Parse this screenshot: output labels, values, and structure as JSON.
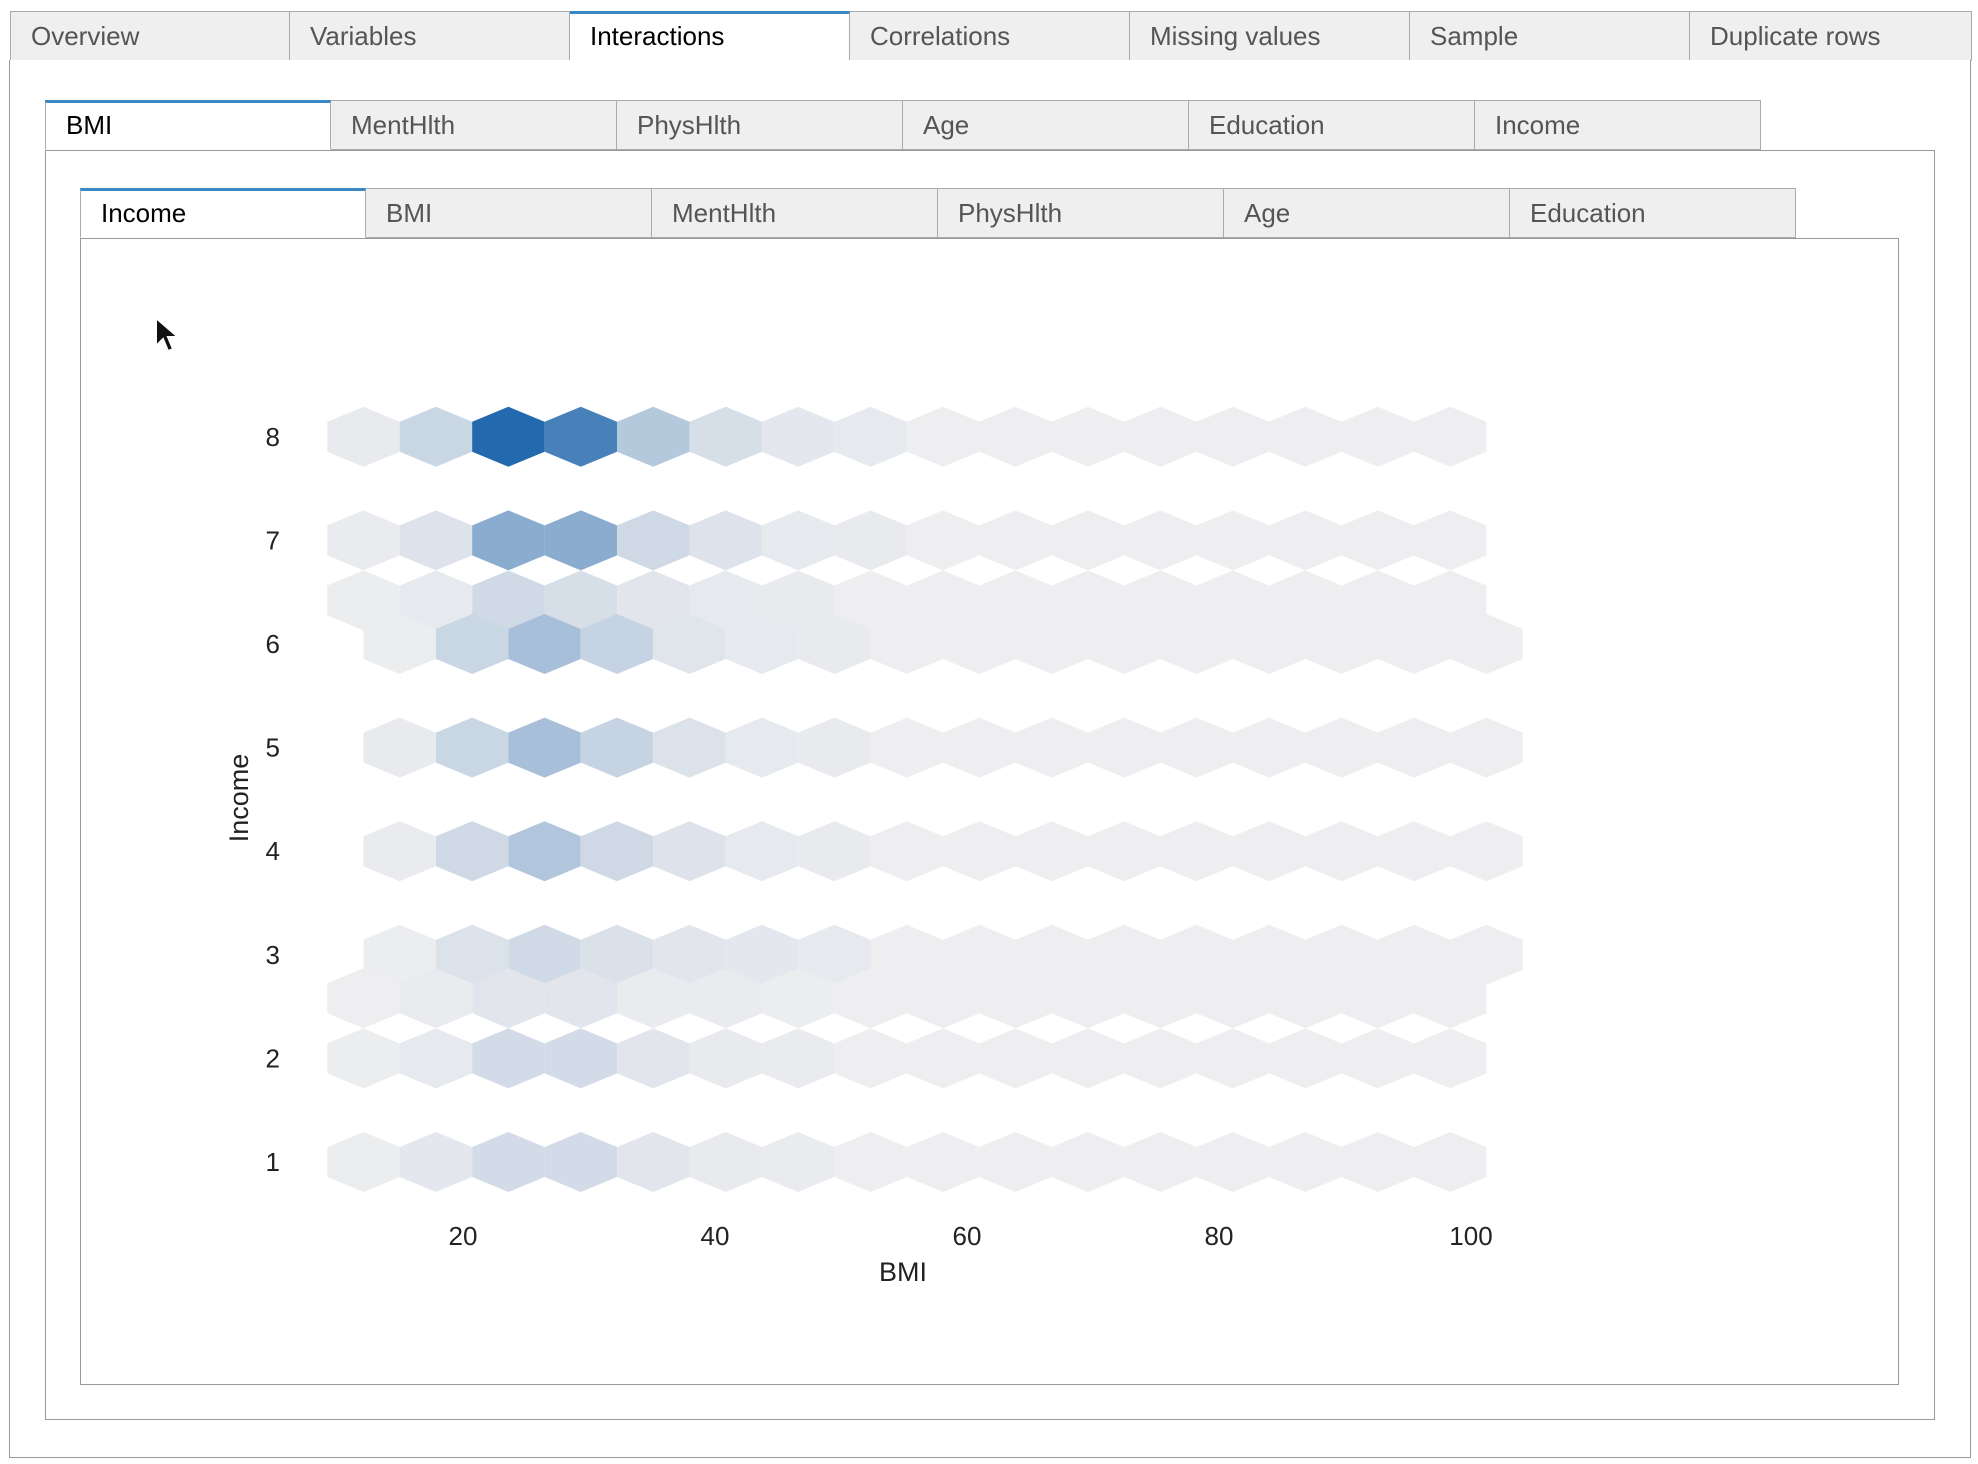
{
  "top_tabs": [
    {
      "label": "Overview",
      "active": false
    },
    {
      "label": "Variables",
      "active": false
    },
    {
      "label": "Interactions",
      "active": true
    },
    {
      "label": "Correlations",
      "active": false
    },
    {
      "label": "Missing values",
      "active": false
    },
    {
      "label": "Sample",
      "active": false
    },
    {
      "label": "Duplicate rows",
      "active": false
    }
  ],
  "x_tabs": [
    {
      "label": "BMI",
      "active": true
    },
    {
      "label": "MentHlth",
      "active": false
    },
    {
      "label": "PhysHlth",
      "active": false
    },
    {
      "label": "Age",
      "active": false
    },
    {
      "label": "Education",
      "active": false
    },
    {
      "label": "Income",
      "active": false
    }
  ],
  "y_tabs": [
    {
      "label": "Income",
      "active": true
    },
    {
      "label": "BMI",
      "active": false
    },
    {
      "label": "MentHlth",
      "active": false
    },
    {
      "label": "PhysHlth",
      "active": false
    },
    {
      "label": "Age",
      "active": false
    },
    {
      "label": "Education",
      "active": false
    }
  ],
  "colors": {
    "accent": "#3b88c6",
    "hex_empty": "#eeeef0",
    "hex_max": "#2369ad"
  },
  "chart_data": {
    "type": "heatmap",
    "subtype": "hexbin",
    "xlabel": "BMI",
    "ylabel": "Income",
    "x_ticks": [
      20,
      40,
      60,
      80,
      100
    ],
    "y_ticks": [
      1,
      2,
      3,
      4,
      5,
      6,
      7,
      8
    ],
    "xlim": [
      9,
      101
    ],
    "ylim": [
      1,
      8
    ],
    "grid": false,
    "legend": "none",
    "hex_grid": {
      "x_start": 12.1,
      "x_step": 5.75,
      "rows": [
        {
          "y": 8.0,
          "offset": false,
          "intensity": [
            0.03,
            0.18,
            1.0,
            0.82,
            0.28,
            0.12,
            0.05,
            0.04,
            0,
            0,
            0,
            0,
            0,
            0,
            0,
            0,
            0
          ]
        },
        {
          "y": 7.0,
          "offset": false,
          "intensity": [
            0.02,
            0.08,
            0.5,
            0.5,
            0.16,
            0.08,
            0.04,
            0.03,
            0,
            0,
            0,
            0,
            0,
            0,
            0,
            0,
            0
          ]
        },
        {
          "y": 6.42,
          "offset": false,
          "intensity": [
            0.01,
            0.04,
            0.15,
            0.12,
            0.06,
            0.04,
            0.03,
            0,
            0,
            0,
            0,
            0,
            0,
            0,
            0,
            0,
            0
          ]
        },
        {
          "y": 6.0,
          "offset": true,
          "intensity": [
            0.01,
            0.18,
            0.35,
            0.2,
            0.07,
            0.04,
            0.03,
            0,
            0,
            0,
            0,
            0,
            0,
            0,
            0,
            0
          ]
        },
        {
          "y": 5.0,
          "offset": true,
          "intensity": [
            0.03,
            0.18,
            0.35,
            0.2,
            0.09,
            0.04,
            0.03,
            0,
            0,
            0,
            0,
            0,
            0,
            0,
            0,
            0
          ]
        },
        {
          "y": 4.0,
          "offset": true,
          "intensity": [
            0.02,
            0.16,
            0.3,
            0.16,
            0.08,
            0.04,
            0.03,
            0,
            0,
            0,
            0,
            0,
            0,
            0,
            0,
            0
          ]
        },
        {
          "y": 3.0,
          "offset": true,
          "intensity": [
            0.01,
            0.09,
            0.15,
            0.1,
            0.06,
            0.05,
            0.04,
            0,
            0,
            0,
            0,
            0,
            0,
            0,
            0,
            0
          ]
        },
        {
          "y": 2.58,
          "offset": false,
          "intensity": [
            0,
            0.02,
            0.06,
            0.06,
            0.02,
            0.02,
            0.01,
            0,
            0,
            0,
            0,
            0,
            0,
            0,
            0,
            0,
            0
          ]
        },
        {
          "y": 2.0,
          "offset": false,
          "intensity": [
            0.01,
            0.04,
            0.14,
            0.14,
            0.06,
            0.03,
            0.02,
            0,
            0,
            0,
            0,
            0,
            0,
            0,
            0,
            0,
            0
          ]
        },
        {
          "y": 1.0,
          "offset": false,
          "intensity": [
            0.01,
            0.05,
            0.14,
            0.14,
            0.06,
            0.03,
            0.02,
            0,
            0,
            0,
            0,
            0,
            0,
            0,
            0,
            0,
            0
          ]
        }
      ]
    }
  }
}
